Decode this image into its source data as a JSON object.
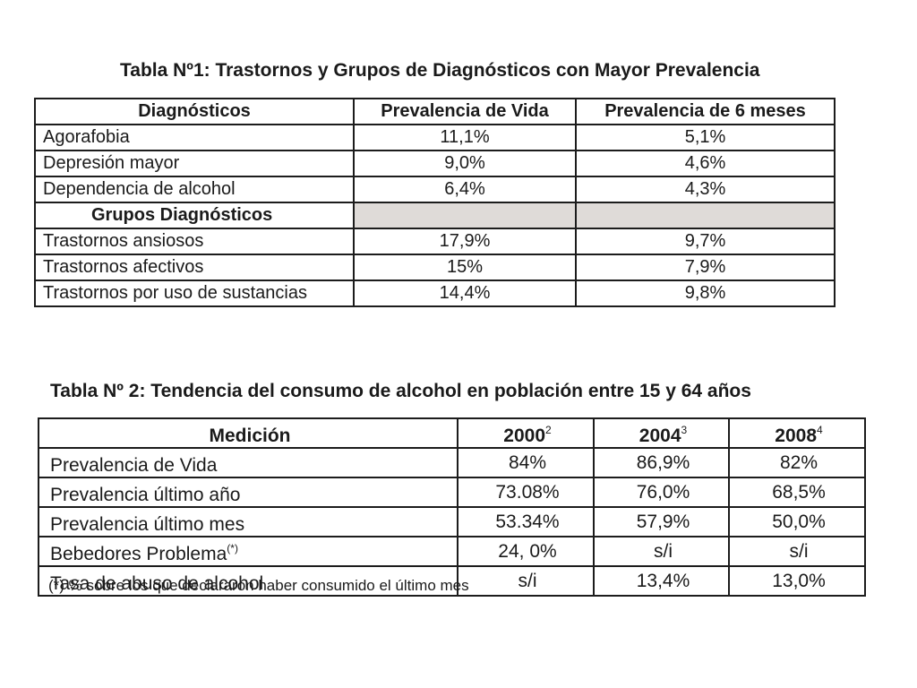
{
  "table1": {
    "title": "Tabla Nº1: Trastornos y Grupos de Diagnósticos con Mayor Prevalencia",
    "headers": [
      "Diagnósticos",
      "Prevalencia de Vida",
      "Prevalencia de 6 meses"
    ],
    "rows": [
      {
        "label": "Agorafobia",
        "vida": "11,1%",
        "seis": "5,1%"
      },
      {
        "label": "Depresión mayor",
        "vida": "9,0%",
        "seis": "4,6%"
      },
      {
        "label": "Dependencia de alcohol",
        "vida": "6,4%",
        "seis": "4,3%"
      }
    ],
    "group_header": "Grupos Diagnósticos",
    "group_rows": [
      {
        "label": "Trastornos ansiosos",
        "vida": "17,9%",
        "seis": "9,7%"
      },
      {
        "label": "Trastornos afectivos",
        "vida": "15%",
        "seis": "7,9%"
      },
      {
        "label": "Trastornos por uso de sustancias",
        "vida": "14,4%",
        "seis": "9,8%"
      }
    ],
    "shade_color": "#dfdbd8"
  },
  "table2": {
    "title": "Tabla Nº 2: Tendencia del consumo de alcohol en población entre 15 y 64 años",
    "headers": [
      {
        "text": "Medición",
        "sup": ""
      },
      {
        "text": "2000",
        "sup": "2"
      },
      {
        "text": "2004",
        "sup": "3"
      },
      {
        "text": "2008",
        "sup": "4"
      }
    ],
    "rows": [
      {
        "label": "Prevalencia de Vida",
        "label_sup": "",
        "v2000": "84%",
        "v2004": "86,9%",
        "v2008": "82%"
      },
      {
        "label": "Prevalencia último año",
        "label_sup": "",
        "v2000": "73.08%",
        "v2004": "76,0%",
        "v2008": "68,5%"
      },
      {
        "label": "Prevalencia último mes",
        "label_sup": "",
        "v2000": "53.34%",
        "v2004": "57,9%",
        "v2008": "50,0%"
      },
      {
        "label": "Bebedores Problema",
        "label_sup": "(*)",
        "v2000": "24, 0%",
        "v2004": "s/i",
        "v2008": "s/i"
      },
      {
        "label": "Tasa de abuso de alcohol",
        "label_sup": "",
        "v2000": "s/i",
        "v2004": "13,4%",
        "v2008": "13,0%"
      }
    ],
    "footnote": "(*) % sobre los que declararon haber consumido el último mes"
  }
}
